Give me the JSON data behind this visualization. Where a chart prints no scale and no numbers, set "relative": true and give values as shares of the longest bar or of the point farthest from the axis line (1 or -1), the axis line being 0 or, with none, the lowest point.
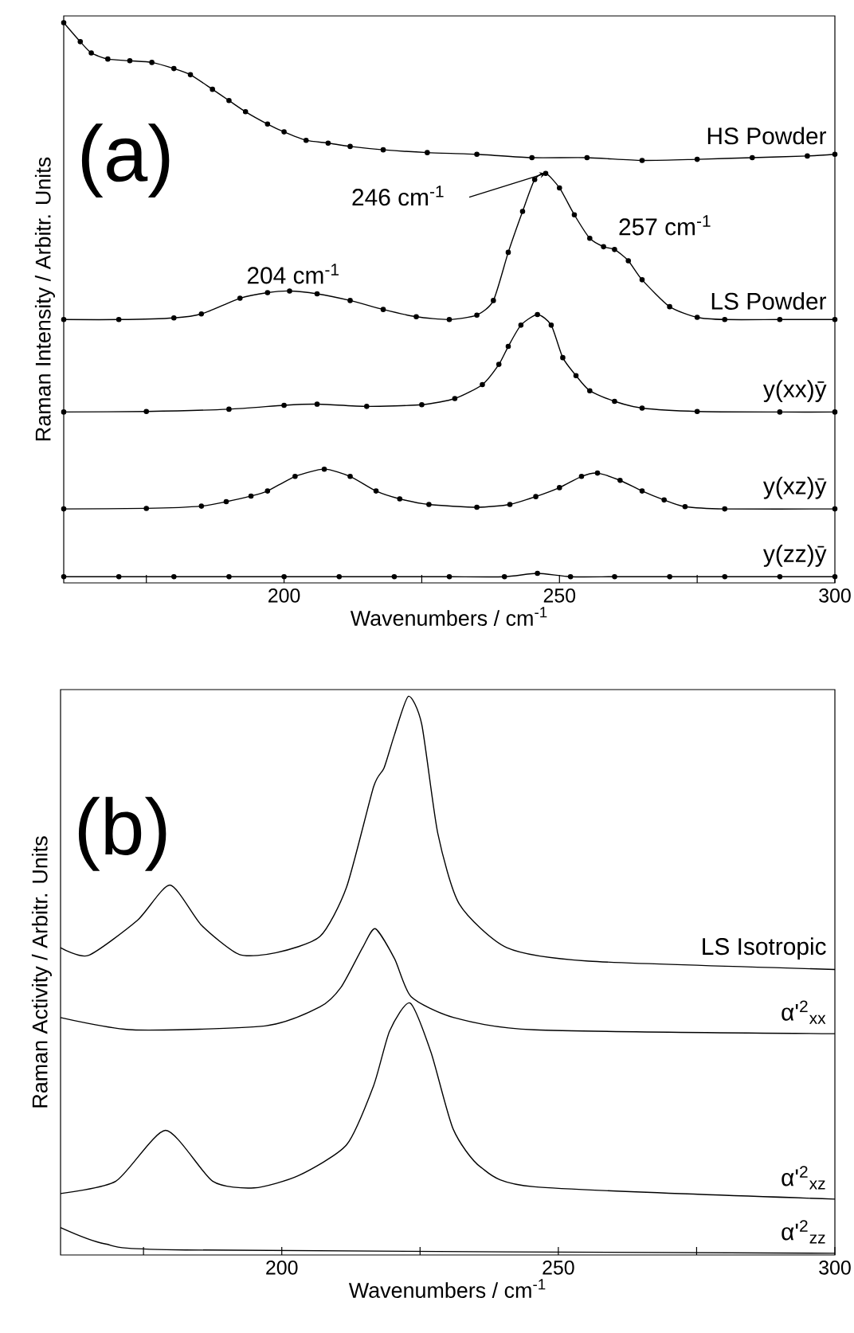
{
  "chart_data": [
    {
      "type": "line",
      "xlabel": "Wavenumbers / cm$^{-1}$",
      "ylabel": "Raman Intensity / Arbitr. Units",
      "relative": true,
      "marker": "circle",
      "xlim": [
        160,
        300
      ],
      "xticks": [
        {
          "value": 175,
          "label": null
        },
        200,
        {
          "value": 225,
          "label": null
        },
        250,
        {
          "value": 275,
          "label": null
        },
        300
      ],
      "annotations": [
        "(a)",
        {
          "text": "246 cm$^{-1}$",
          "x": 247.5,
          "y": 0.731
        },
        {
          "text": "204 cm$^{-1}$",
          "x": 204,
          "y": 0.519
        },
        {
          "text": "257 cm$^{-1}$",
          "x": 258,
          "y": 0.6
        }
      ],
      "series": [
        {
          "name": "HS Powder",
          "color": "#000000",
          "x": [
            160,
            163,
            165,
            168,
            172,
            176,
            180,
            183,
            187,
            190,
            193,
            197,
            200,
            204,
            208,
            212,
            218,
            226,
            235,
            245,
            255,
            265,
            275,
            285,
            295,
            300
          ],
          "values": [
            1.0,
            0.966,
            0.946,
            0.935,
            0.932,
            0.929,
            0.918,
            0.907,
            0.881,
            0.861,
            0.841,
            0.819,
            0.805,
            0.79,
            0.785,
            0.779,
            0.773,
            0.768,
            0.765,
            0.759,
            0.759,
            0.754,
            0.756,
            0.759,
            0.762,
            0.765
          ]
        },
        {
          "name": "LS Powder",
          "color": "#000000",
          "x": [
            160,
            170,
            180,
            185,
            192,
            197,
            201,
            206,
            212,
            218,
            224,
            230,
            235,
            238,
            240.7,
            243.3,
            245.5,
            247.5,
            250,
            252.7,
            255.5,
            258,
            260,
            262.5,
            265,
            270,
            275,
            280,
            290,
            300
          ],
          "values": [
            0.47,
            0.47,
            0.473,
            0.48,
            0.508,
            0.518,
            0.521,
            0.516,
            0.504,
            0.488,
            0.475,
            0.47,
            0.478,
            0.504,
            0.59,
            0.663,
            0.72,
            0.731,
            0.705,
            0.657,
            0.615,
            0.6,
            0.595,
            0.575,
            0.541,
            0.493,
            0.474,
            0.47,
            0.47,
            0.47
          ]
        },
        {
          "name": "y(xx)ȳ",
          "color": "#000000",
          "x": [
            160,
            175,
            190,
            200,
            206,
            215,
            225,
            231,
            236,
            239,
            240.7,
            243,
            246,
            248.5,
            250.6,
            253,
            255.5,
            260,
            265,
            275,
            290,
            300
          ],
          "values": [
            0.305,
            0.306,
            0.31,
            0.317,
            0.319,
            0.315,
            0.318,
            0.329,
            0.354,
            0.39,
            0.422,
            0.46,
            0.479,
            0.46,
            0.402,
            0.37,
            0.343,
            0.324,
            0.312,
            0.306,
            0.305,
            0.305
          ]
        },
        {
          "name": "y(xz)ȳ",
          "color": "#000000",
          "x": [
            160,
            175,
            185,
            189.5,
            194,
            197,
            202,
            207.3,
            212,
            216.7,
            221,
            226.3,
            235,
            241,
            245.7,
            250,
            254,
            256.9,
            261,
            265,
            269,
            272.8,
            280,
            300
          ],
          "values": [
            0.132,
            0.133,
            0.137,
            0.145,
            0.155,
            0.164,
            0.19,
            0.203,
            0.19,
            0.164,
            0.15,
            0.14,
            0.135,
            0.14,
            0.154,
            0.17,
            0.19,
            0.196,
            0.183,
            0.164,
            0.148,
            0.136,
            0.132,
            0.132
          ]
        },
        {
          "name": "y(zz)ȳ",
          "color": "#000000",
          "x": [
            160,
            170,
            180,
            190,
            200,
            210,
            220,
            230,
            240,
            246,
            252,
            260,
            270,
            280,
            290,
            300
          ],
          "values": [
            0.011,
            0.011,
            0.011,
            0.011,
            0.011,
            0.011,
            0.011,
            0.011,
            0.011,
            0.017,
            0.011,
            0.011,
            0.011,
            0.011,
            0.011,
            0.011
          ]
        }
      ]
    },
    {
      "type": "line",
      "xlabel": "Wavenumbers / cm$^{-1}$",
      "ylabel": "Raman Activity / Arbitr. Units",
      "relative": true,
      "xlim": [
        160,
        300
      ],
      "xticks": [
        {
          "value": 175,
          "label": null
        },
        200,
        {
          "value": 225,
          "label": null
        },
        250,
        {
          "value": 275,
          "label": null
        },
        300
      ],
      "annotations": [
        "(b)"
      ],
      "series": [
        {
          "name": "LS Isotropic",
          "color": "#000000",
          "x": [
            160,
            165,
            173.9,
            179.8,
            185.5,
            192.3,
            199,
            206.9,
            211.7,
            216.6,
            218.5,
            220.4,
            222.9,
            225.3,
            228.2,
            232.1,
            240.7,
            255.5,
            300
          ],
          "values": [
            0.55,
            0.536,
            0.599,
            0.662,
            0.59,
            0.538,
            0.541,
            0.57,
            0.658,
            0.838,
            0.872,
            0.932,
            1.0,
            0.95,
            0.755,
            0.628,
            0.55,
            0.526,
            0.511
          ]
        },
        {
          "name": "α'$^{2}$$_{xx}$",
          "color": "#000000",
          "x": [
            160,
            173,
            197,
            206.9,
            210.7,
            214.6,
            216.9,
            220.4,
            223.4,
            231.1,
            245.7,
            300
          ],
          "values": [
            0.425,
            0.403,
            0.41,
            0.444,
            0.479,
            0.55,
            0.584,
            0.53,
            0.462,
            0.425,
            0.403,
            0.396
          ]
        },
        {
          "name": "α'$^{2}$$_{xz}$",
          "color": "#000000",
          "x": [
            160,
            170,
            179,
            187.5,
            195,
            203,
            211.7,
            216.6,
            219.5,
            223.2,
            227,
            231,
            236,
            245.7,
            300
          ],
          "values": [
            0.11,
            0.132,
            0.223,
            0.132,
            0.12,
            0.142,
            0.197,
            0.303,
            0.401,
            0.451,
            0.362,
            0.225,
            0.157,
            0.122,
            0.1
          ]
        },
        {
          "name": "α'$^{2}$$_{zz}$",
          "color": "#000000",
          "x": [
            160,
            168,
            182.6,
            300
          ],
          "values": [
            0.049,
            0.02,
            0.009,
            0.003
          ]
        }
      ]
    }
  ]
}
